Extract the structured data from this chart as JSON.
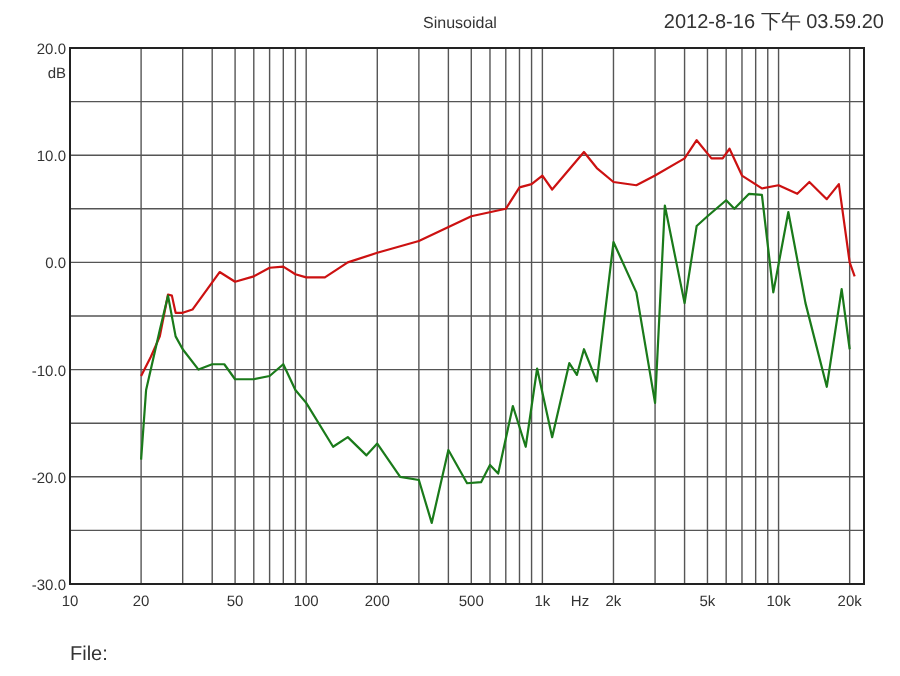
{
  "chart_data": {
    "type": "line",
    "title": "Sinusoidal",
    "xlabel": "Hz",
    "ylabel": "dB",
    "annotations": [
      "2012-8-16 下午 03.59.20",
      "File:"
    ],
    "log": "x",
    "grid": true,
    "line_style": "solid",
    "marker": "none",
    "xlim": [
      10,
      23000
    ],
    "ylim": [
      -30,
      20
    ],
    "xticks": [
      10,
      20,
      50,
      100,
      200,
      500,
      {
        "value": 1000,
        "label": "1k"
      },
      {
        "value": 2000,
        "label": "2k"
      },
      {
        "value": 5000,
        "label": "5k"
      },
      {
        "value": 10000,
        "label": "10k"
      },
      {
        "value": 20000,
        "label": "20k"
      }
    ],
    "yticks": [
      {
        "value": -30,
        "label": "-30.0"
      },
      {
        "value": -20,
        "label": "-20.0"
      },
      {
        "value": -10,
        "label": "-10.0"
      },
      {
        "value": 0,
        "label": "0.0"
      },
      {
        "value": 10,
        "label": "10.0"
      },
      {
        "value": 20,
        "label": "20.0"
      }
    ],
    "series": [
      {
        "color": "#cc1111",
        "x": [
          20,
          22,
          24,
          26,
          27,
          28,
          30,
          33,
          43,
          50,
          60,
          70,
          80,
          90,
          100,
          120,
          150,
          200,
          300,
          500,
          700,
          800,
          900,
          1000,
          1100,
          1500,
          1700,
          2000,
          2500,
          3000,
          4000,
          4500,
          5200,
          5800,
          6200,
          7000,
          8500,
          10000,
          12000,
          13500,
          16000,
          18000,
          20000,
          21000
        ],
        "values": [
          -10.6,
          -8.8,
          -6.9,
          -3,
          -3.1,
          -4.7,
          -4.7,
          -4.4,
          -0.9,
          -1.8,
          -1.3,
          -0.5,
          -0.4,
          -1.1,
          -1.4,
          -1.4,
          0,
          0.9,
          2,
          4.3,
          5,
          7,
          7.3,
          8.1,
          6.8,
          10.3,
          8.8,
          7.5,
          7.2,
          8.1,
          9.7,
          11.4,
          9.7,
          9.7,
          10.6,
          8.1,
          6.9,
          7.2,
          6.4,
          7.5,
          5.9,
          7.3,
          0,
          -1.3
        ]
      },
      {
        "color": "#1a7a1a",
        "x": [
          20,
          21,
          24,
          26,
          28,
          30,
          35,
          40,
          45,
          50,
          60,
          70,
          80,
          90,
          100,
          130,
          150,
          180,
          200,
          250,
          300,
          340,
          400,
          480,
          550,
          600,
          650,
          750,
          850,
          950,
          1100,
          1300,
          1400,
          1500,
          1700,
          2000,
          2500,
          3000,
          3300,
          4000,
          4500,
          5000,
          6000,
          6500,
          7500,
          8500,
          9500,
          11000,
          13000,
          16000,
          18500,
          20000
        ],
        "values": [
          -18.4,
          -11.9,
          -6.3,
          -3.1,
          -6.9,
          -8.1,
          -10,
          -9.5,
          -9.5,
          -10.9,
          -10.9,
          -10.6,
          -9.5,
          -11.9,
          -13.1,
          -17.2,
          -16.3,
          -18,
          -16.9,
          -20,
          -20.3,
          -24.3,
          -17.5,
          -20.6,
          -20.5,
          -18.9,
          -19.7,
          -13.4,
          -17.2,
          -9.9,
          -16.3,
          -9.4,
          -10.5,
          -8.1,
          -11.1,
          1.9,
          -2.8,
          -13.1,
          5.3,
          -3.8,
          3.4,
          4.3,
          5.8,
          5,
          6.4,
          6.3,
          -2.8,
          4.7,
          -3.8,
          -11.6,
          -2.5,
          -8.1
        ]
      }
    ]
  }
}
